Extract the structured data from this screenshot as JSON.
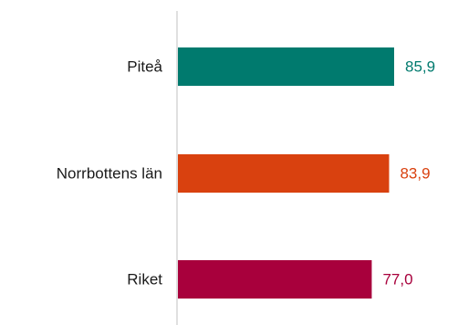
{
  "chart_data": {
    "type": "bar",
    "orientation": "horizontal",
    "title": "",
    "xlabel": "",
    "ylabel": "",
    "categories": [
      "Piteå",
      "Norrbottens län",
      "Riket"
    ],
    "values": [
      85.9,
      83.9,
      77.0
    ],
    "value_labels": [
      "85,9",
      "83,9",
      "77,0"
    ],
    "colors": [
      "#007a6e",
      "#d9410f",
      "#a8003c"
    ],
    "xlim": [
      0,
      100
    ],
    "grid": false,
    "legend": "none"
  }
}
